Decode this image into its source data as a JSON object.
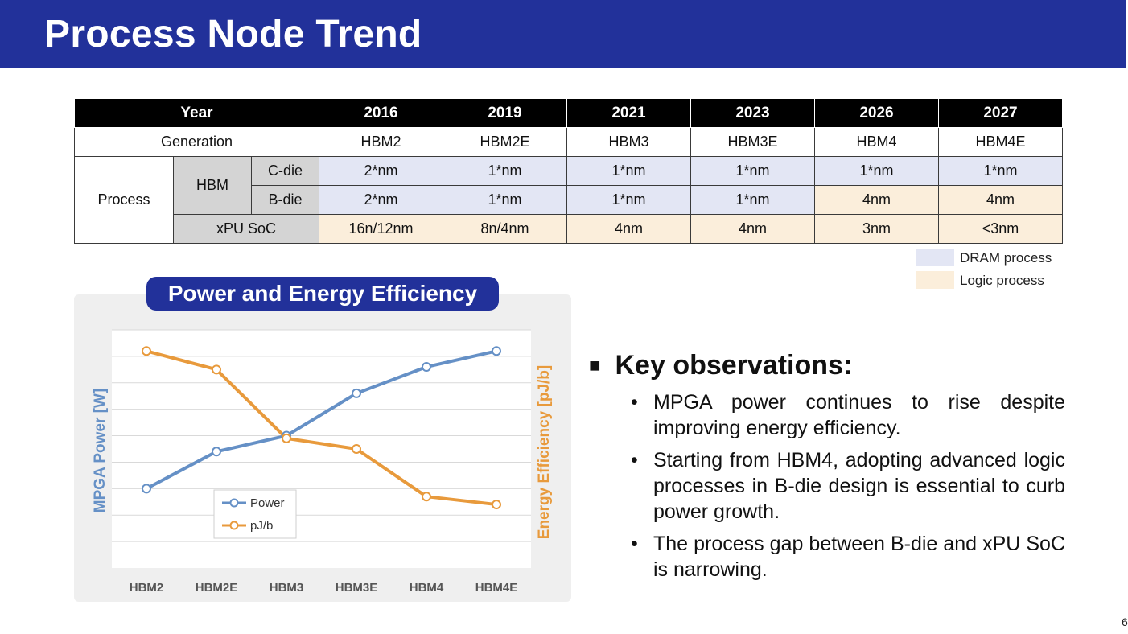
{
  "title": "Process Node Trend",
  "table": {
    "year_header": "Year",
    "years": [
      "2016",
      "2019",
      "2021",
      "2023",
      "2026",
      "2027"
    ],
    "generation_label": "Generation",
    "generations": [
      "HBM2",
      "HBM2E",
      "HBM3",
      "HBM3E",
      "HBM4",
      "HBM4E"
    ],
    "process_label": "Process",
    "hbm_label": "HBM",
    "cdie_label": "C-die",
    "bdie_label": "B-die",
    "xpu_label": "xPU SoC",
    "cdie": [
      "2*nm",
      "1*nm",
      "1*nm",
      "1*nm",
      "1*nm",
      "1*nm"
    ],
    "bdie": [
      "2*nm",
      "1*nm",
      "1*nm",
      "1*nm",
      "4nm",
      "4nm"
    ],
    "xpu": [
      "16n/12nm",
      "8n/4nm",
      "4nm",
      "4nm",
      "3nm",
      "<3nm"
    ]
  },
  "legend": {
    "dram": "DRAM process",
    "logic": "Logic process"
  },
  "colors": {
    "brand": "#22319a",
    "dram": "#e3e6f4",
    "logic": "#fbeedb",
    "power": "#6590c6",
    "pjb": "#e89a3c"
  },
  "chart_title": "Power and Energy Efficiency",
  "chart_data": {
    "type": "line",
    "categories": [
      "HBM2",
      "HBM2E",
      "HBM3",
      "HBM3E",
      "HBM4",
      "HBM4E"
    ],
    "series": [
      {
        "name": "Power",
        "values": [
          3.0,
          4.4,
          5.0,
          6.6,
          7.6,
          8.2
        ]
      },
      {
        "name": "pJ/b",
        "values": [
          8.2,
          7.5,
          4.9,
          4.5,
          2.7,
          2.4
        ]
      }
    ],
    "ylabel": "MPGA Power [W]",
    "y2label": "Energy Efficiency [pJ/b]",
    "ylim": [
      0,
      9
    ],
    "grid": true,
    "legend_position": "bottom-left"
  },
  "key": {
    "bullet_glyph": "■",
    "heading": "Key observations:",
    "bullets": [
      "MPGA power continues to rise despite improving energy efficiency.",
      "Starting from HBM4, adopting advanced logic processes in B-die design is essential to curb power growth.",
      "The process gap between B-die and xPU SoC is narrowing."
    ]
  },
  "page_number": "6"
}
